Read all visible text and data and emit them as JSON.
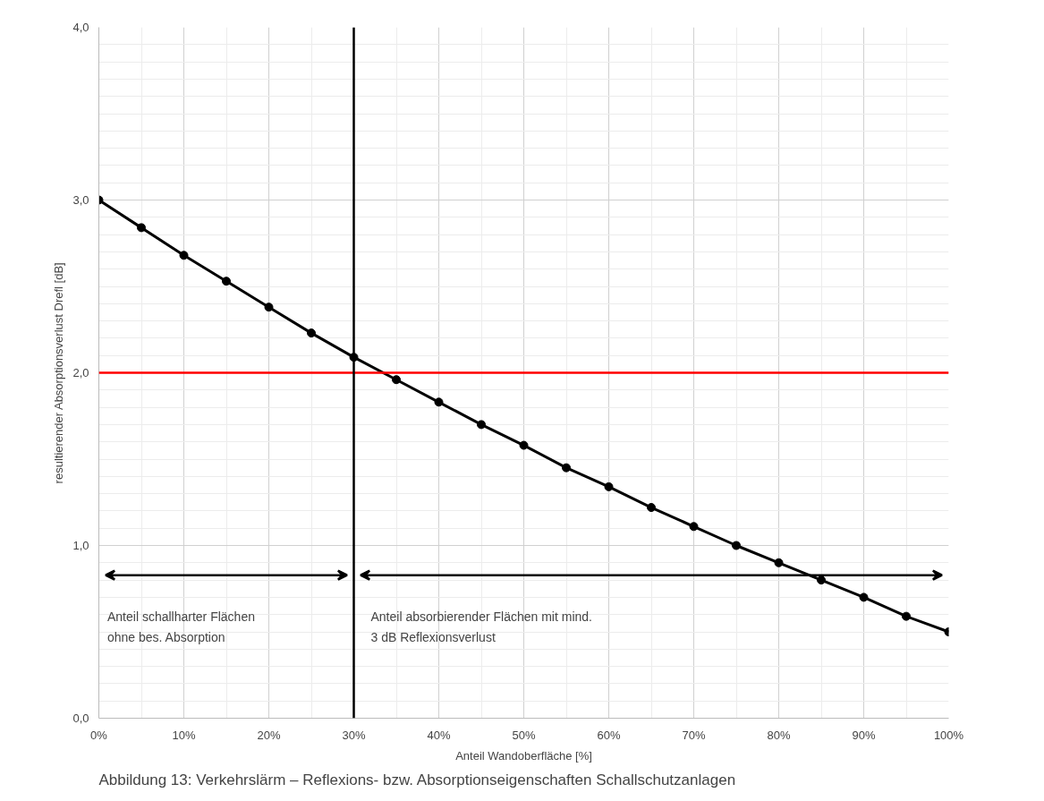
{
  "chart_data": {
    "type": "line",
    "xlabel": "Anteil Wandoberfläche [%]",
    "ylabel": "resultierender Absorptionsverlust Drefl [dB]",
    "x": [
      0,
      5,
      10,
      15,
      20,
      25,
      30,
      35,
      40,
      45,
      50,
      55,
      60,
      65,
      70,
      75,
      80,
      85,
      90,
      95,
      100
    ],
    "series": [
      {
        "color": "#000000",
        "values": [
          3.0,
          2.84,
          2.68,
          2.53,
          2.38,
          2.23,
          2.09,
          1.96,
          1.83,
          1.7,
          1.58,
          1.45,
          1.34,
          1.22,
          1.11,
          1.0,
          0.9,
          0.8,
          0.7,
          0.59,
          0.5
        ]
      }
    ],
    "xlim": [
      0,
      100
    ],
    "ylim": [
      0,
      4
    ],
    "xticks": [
      {
        "value": 0,
        "label": "0%"
      },
      {
        "value": 10,
        "label": "10%"
      },
      {
        "value": 20,
        "label": "20%"
      },
      {
        "value": 30,
        "label": "30%"
      },
      {
        "value": 40,
        "label": "40%"
      },
      {
        "value": 50,
        "label": "50%"
      },
      {
        "value": 60,
        "label": "60%"
      },
      {
        "value": 70,
        "label": "70%"
      },
      {
        "value": 80,
        "label": "80%"
      },
      {
        "value": 90,
        "label": "90%"
      },
      {
        "value": 100,
        "label": "100%"
      }
    ],
    "yticks": [
      {
        "value": 0,
        "label": "0,0"
      },
      {
        "value": 1,
        "label": "1,0"
      },
      {
        "value": 2,
        "label": "2,0"
      },
      {
        "value": 3,
        "label": "3,0"
      },
      {
        "value": 4,
        "label": "4,0"
      }
    ],
    "ref_lines": [
      {
        "axis": "y",
        "value": 2,
        "color": "#ff0000"
      },
      {
        "axis": "x",
        "value": 30,
        "color": "#000000"
      }
    ],
    "annotations": [
      "Anteil schallharter Flächen\nohne bes. Absorption",
      "Anteil absorbierender Flächen mit mind.\n3 dB Reflexionsverlust",
      "Abbildung 13:  Verkehrslärm – Reflexions- bzw. Absorptionseigenschaften Schallschutzanlagen"
    ],
    "grid": true,
    "marker": "circle",
    "line_style": "solid"
  }
}
